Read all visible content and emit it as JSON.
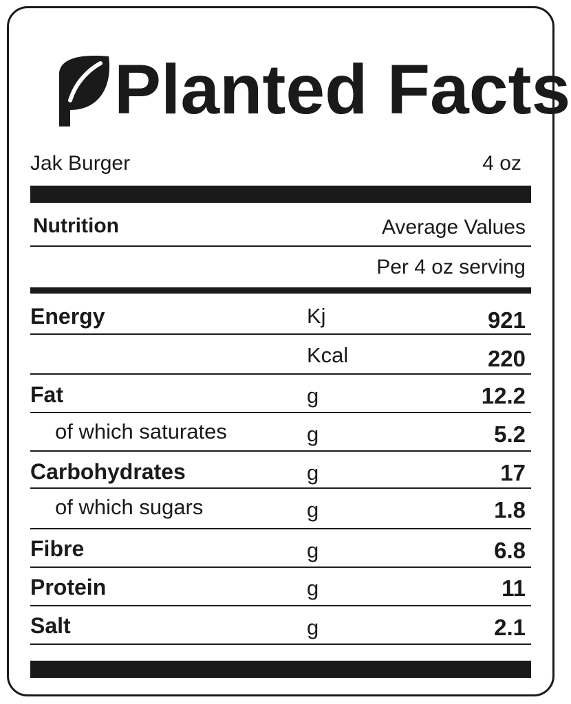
{
  "title": "Planted Facts",
  "product": {
    "name": "Jak Burger",
    "size": "4 oz"
  },
  "header": {
    "nutrition": "Nutrition",
    "average_values": "Average Values",
    "per_serving": "Per 4 oz serving"
  },
  "rows": [
    {
      "nutrient": "Energy",
      "unit": "Kj",
      "value": "921"
    },
    {
      "nutrient": "",
      "unit": "Kcal",
      "value": "220"
    },
    {
      "nutrient": "Fat",
      "unit": "g",
      "value": "12.2"
    },
    {
      "nutrient": "of which saturates",
      "unit": "g",
      "value": "5.2"
    },
    {
      "nutrient": "Carbohydrates",
      "unit": "g",
      "value": "17"
    },
    {
      "nutrient": "of which sugars",
      "unit": "g",
      "value": "1.8"
    },
    {
      "nutrient": "Fibre",
      "unit": "g",
      "value": "6.8"
    },
    {
      "nutrient": "Protein",
      "unit": "g",
      "value": "11"
    },
    {
      "nutrient": "Salt",
      "unit": "g",
      "value": "2.1"
    }
  ],
  "colors": {
    "ink": "#1a1a1a",
    "background": "#ffffff"
  },
  "icons": {
    "logo": "leaf-icon"
  }
}
